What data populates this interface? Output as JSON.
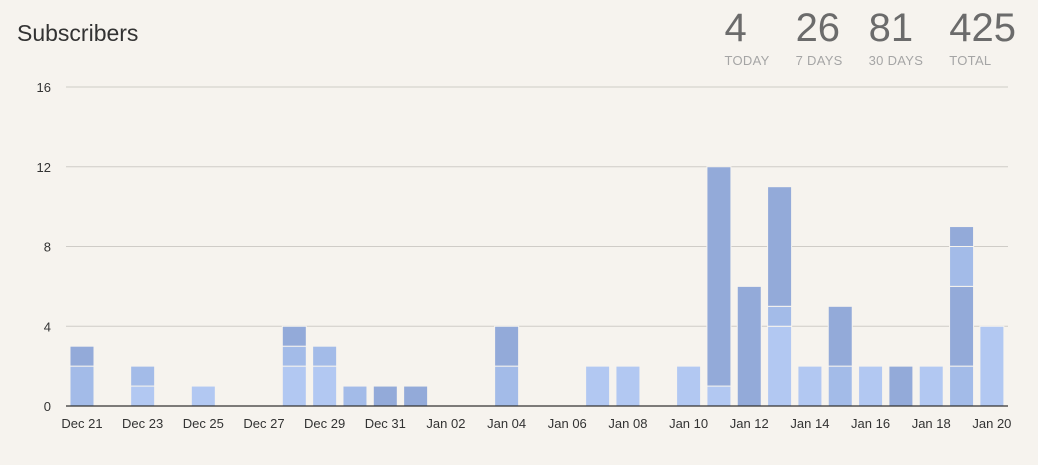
{
  "header": {
    "title": "Subscribers",
    "stats": [
      {
        "value": "4",
        "label": "TODAY"
      },
      {
        "value": "26",
        "label": "7 DAYS"
      },
      {
        "value": "81",
        "label": "30 DAYS"
      },
      {
        "value": "425",
        "label": "TOTAL"
      }
    ]
  },
  "chart_data": {
    "type": "bar",
    "stacked": true,
    "ylim": [
      0,
      16
    ],
    "yticks": [
      0,
      4,
      8,
      12,
      16
    ],
    "grid": true,
    "colors": {
      "light": "#b2c8f2",
      "mid": "#a3bbe8",
      "dark": "#93aad9"
    },
    "x": [
      "Dec 21",
      "Dec 22",
      "Dec 23",
      "Dec 24",
      "Dec 25",
      "Dec 26",
      "Dec 27",
      "Dec 28",
      "Dec 29",
      "Dec 30",
      "Dec 31",
      "Jan 01",
      "Jan 02",
      "Jan 03",
      "Jan 04",
      "Jan 05",
      "Jan 06",
      "Jan 07",
      "Jan 08",
      "Jan 09",
      "Jan 10",
      "Jan 11",
      "Jan 12",
      "Jan 13",
      "Jan 14",
      "Jan 15",
      "Jan 16",
      "Jan 17",
      "Jan 18",
      "Jan 19",
      "Jan 20"
    ],
    "xtick_labels": [
      "Dec 21",
      "Dec 23",
      "Dec 25",
      "Dec 27",
      "Dec 29",
      "Dec 31",
      "Jan 02",
      "Jan 04",
      "Jan 06",
      "Jan 08",
      "Jan 10",
      "Jan 12",
      "Jan 14",
      "Jan 16",
      "Jan 18",
      "Jan 20"
    ],
    "series": [
      {
        "color": "light",
        "values": [
          0,
          0,
          1,
          0,
          1,
          0,
          0,
          2,
          2,
          0,
          0,
          0,
          0,
          0,
          0,
          0,
          0,
          2,
          2,
          0,
          2,
          1,
          0,
          4,
          2,
          0,
          2,
          0,
          2,
          0,
          4
        ]
      },
      {
        "color": "mid",
        "values": [
          2,
          0,
          1,
          0,
          0,
          0,
          0,
          1,
          1,
          1,
          0,
          0,
          0,
          0,
          2,
          0,
          0,
          0,
          0,
          0,
          0,
          0,
          0,
          1,
          0,
          2,
          0,
          0,
          0,
          2,
          0
        ]
      },
      {
        "color": "dark",
        "values": [
          1,
          0,
          0,
          0,
          0,
          0,
          0,
          1,
          0,
          0,
          1,
          1,
          0,
          0,
          2,
          0,
          0,
          0,
          0,
          0,
          0,
          11,
          6,
          6,
          0,
          3,
          0,
          2,
          0,
          4,
          0
        ]
      },
      {
        "color": "mid",
        "values": [
          0,
          0,
          0,
          0,
          0,
          0,
          0,
          0,
          0,
          0,
          0,
          0,
          0,
          0,
          0,
          0,
          0,
          0,
          0,
          0,
          0,
          0,
          0,
          0,
          0,
          0,
          0,
          0,
          0,
          2,
          0
        ]
      },
      {
        "color": "dark",
        "values": [
          0,
          0,
          0,
          0,
          0,
          0,
          0,
          0,
          0,
          0,
          0,
          0,
          0,
          0,
          0,
          0,
          0,
          0,
          0,
          0,
          0,
          0,
          0,
          0,
          0,
          0,
          0,
          0,
          0,
          1,
          0
        ]
      }
    ]
  }
}
